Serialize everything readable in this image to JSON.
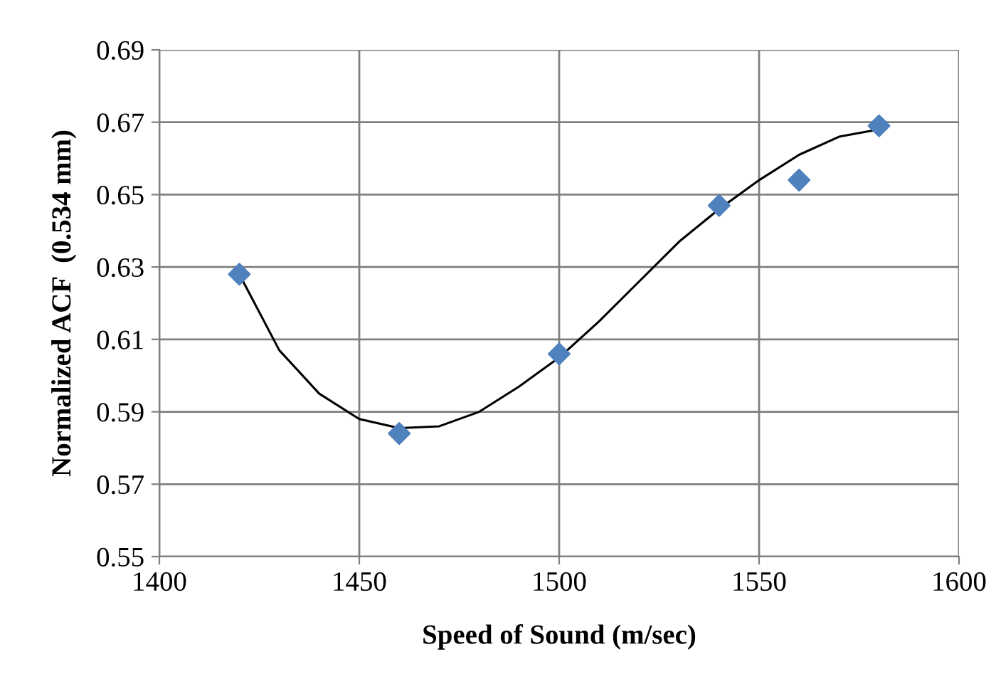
{
  "chart_data": {
    "type": "scatter",
    "xlabel": "Speed of Sound (m/sec)",
    "ylabel": "Normalized ACF  (0.534 mm)",
    "xlim": [
      1400,
      1600
    ],
    "xticks": [
      1400,
      1450,
      1500,
      1550,
      1600
    ],
    "ylim": [
      0.55,
      0.69
    ],
    "yticks": [
      0.55,
      0.57,
      0.59,
      0.61,
      0.63,
      0.65,
      0.67,
      0.69
    ],
    "grid": true,
    "legend": false,
    "series": [
      {
        "marker": "diamond",
        "color": "#4f81bd",
        "x": [
          1420,
          1460,
          1500,
          1540,
          1560,
          1580
        ],
        "values": [
          0.628,
          0.584,
          0.606,
          0.647,
          0.654,
          0.669
        ]
      },
      {
        "type": "line",
        "marker": "none",
        "line_style": "solid",
        "color": "#000000",
        "x": [
          1420,
          1430,
          1440,
          1450,
          1460,
          1470,
          1480,
          1490,
          1500,
          1510,
          1520,
          1530,
          1540,
          1550,
          1560,
          1570,
          1580
        ],
        "values": [
          0.628,
          0.607,
          0.595,
          0.588,
          0.5855,
          0.586,
          0.59,
          0.597,
          0.605,
          0.615,
          0.626,
          0.637,
          0.646,
          0.654,
          0.661,
          0.666,
          0.668
        ]
      }
    ]
  }
}
